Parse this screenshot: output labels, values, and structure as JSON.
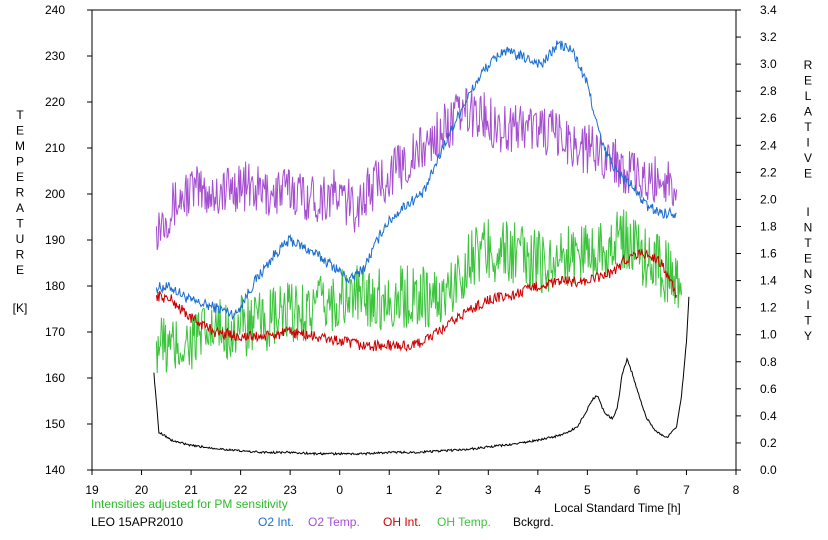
{
  "chart_data": {
    "type": "line",
    "left_axis": {
      "label_letters": [
        "T",
        "E",
        "M",
        "P",
        "E",
        "R",
        "A",
        "T",
        "U",
        "R",
        "E"
      ],
      "unit": "[K]",
      "ylim": [
        140,
        240
      ],
      "ticks": [
        "140",
        "150",
        "160",
        "170",
        "180",
        "190",
        "200",
        "210",
        "220",
        "230",
        "240"
      ]
    },
    "right_axis": {
      "label_line1": [
        "R",
        "E",
        "L",
        "A",
        "T",
        "I",
        "V",
        "E"
      ],
      "label_line2": [
        "I",
        "N",
        "T",
        "E",
        "N",
        "S",
        "I",
        "T",
        "Y"
      ],
      "ylim": [
        0.0,
        3.4
      ],
      "ticks": [
        "0.0",
        "0.2",
        "0.4",
        "0.6",
        "0.8",
        "1.0",
        "1.2",
        "1.4",
        "1.6",
        "1.8",
        "2.0",
        "2.2",
        "2.4",
        "2.6",
        "2.8",
        "3.0",
        "3.2",
        "3.4"
      ]
    },
    "x_axis": {
      "label": "Local Standard Time [h]",
      "xlim": [
        19,
        32
      ],
      "ticks": [
        "19",
        "20",
        "21",
        "22",
        "23",
        "0",
        "1",
        "2",
        "3",
        "4",
        "5",
        "6",
        "7",
        "8"
      ]
    },
    "note": "Intensities adjusted for PM sensitivity",
    "station": "LEO 15APR2010",
    "legend": [
      {
        "label": "O2 Int.",
        "color": "#1a6ecf"
      },
      {
        "label": "O2 Temp.",
        "color": "#a54fd0"
      },
      {
        "label": "OH Int.",
        "color": "#cc0000"
      },
      {
        "label": "OH Temp.",
        "color": "#3cc43c"
      },
      {
        "label": "Bckgrd.",
        "color": "#000000"
      }
    ],
    "series": [
      {
        "label_index": 0,
        "axis": "right",
        "noise": 0.04,
        "x": [
          20.3,
          20.6,
          21.0,
          21.5,
          21.9,
          22.3,
          22.7,
          23.0,
          23.5,
          23.9,
          24.2,
          24.5,
          24.9,
          25.3,
          25.7,
          26.1,
          26.5,
          26.9,
          27.3,
          27.7,
          28.1,
          28.4,
          28.7,
          29.0,
          29.3,
          29.6,
          29.9,
          30.2,
          30.5,
          30.8
        ],
        "y": [
          1.35,
          1.35,
          1.25,
          1.2,
          1.15,
          1.4,
          1.6,
          1.7,
          1.6,
          1.5,
          1.4,
          1.5,
          1.8,
          1.95,
          2.05,
          2.4,
          2.7,
          2.95,
          3.1,
          3.05,
          3.0,
          3.15,
          3.1,
          2.85,
          2.4,
          2.2,
          2.1,
          1.95,
          1.9,
          1.9
        ]
      },
      {
        "label_index": 1,
        "axis": "left",
        "noise": 5.5,
        "x": [
          20.3,
          20.6,
          21.0,
          21.5,
          22.0,
          22.5,
          23.0,
          23.5,
          23.9,
          24.3,
          24.7,
          25.1,
          25.5,
          26.0,
          26.5,
          26.9,
          27.3,
          27.7,
          28.1,
          28.5,
          28.9,
          29.3,
          29.6,
          29.9,
          30.2,
          30.5,
          30.8
        ],
        "y": [
          193,
          197,
          201,
          200,
          202,
          200,
          201,
          199,
          200,
          197,
          202,
          205,
          208,
          213,
          218,
          217,
          214,
          215,
          214,
          212,
          210,
          209,
          207,
          204,
          202,
          204,
          201
        ]
      },
      {
        "label_index": 2,
        "axis": "left",
        "noise": 1.2,
        "x": [
          20.3,
          20.6,
          21.0,
          21.5,
          22.0,
          22.5,
          23.0,
          23.5,
          24.0,
          24.5,
          25.0,
          25.5,
          26.0,
          26.5,
          27.0,
          27.5,
          28.0,
          28.5,
          29.0,
          29.5,
          29.8,
          30.0,
          30.2,
          30.5,
          30.8
        ],
        "y": [
          178,
          177,
          173,
          170,
          169,
          169,
          170,
          169,
          168,
          167,
          167,
          167,
          170,
          174,
          177,
          178,
          180,
          181,
          181,
          183,
          186,
          187,
          187,
          185,
          178
        ]
      },
      {
        "label_index": 3,
        "axis": "left",
        "noise": 7.0,
        "x": [
          20.3,
          20.6,
          21.0,
          21.5,
          22.0,
          22.5,
          23.0,
          23.5,
          24.0,
          24.5,
          25.0,
          25.5,
          26.0,
          26.3,
          26.6,
          27.0,
          27.5,
          28.0,
          28.5,
          29.0,
          29.5,
          29.8,
          30.1,
          30.4,
          30.7,
          30.9
        ],
        "y": [
          168,
          166,
          168,
          170,
          171,
          172,
          174,
          175,
          177,
          178,
          177,
          178,
          177,
          180,
          186,
          188,
          187,
          185,
          186,
          188,
          189,
          190,
          187,
          185,
          182,
          178
        ]
      },
      {
        "label_index": 4,
        "axis": "right",
        "noise": 0.008,
        "x": [
          20.25,
          20.3,
          20.35,
          20.45,
          20.6,
          21.0,
          21.5,
          22.0,
          22.5,
          23.0,
          23.5,
          24.0,
          24.5,
          25.0,
          25.5,
          26.0,
          26.5,
          27.0,
          27.5,
          28.0,
          28.5,
          28.8,
          29.0,
          29.1,
          29.2,
          29.35,
          29.5,
          29.6,
          29.7,
          29.8,
          29.9,
          30.0,
          30.1,
          30.2,
          30.4,
          30.6,
          30.8,
          30.9,
          31.0,
          31.05
        ],
        "y": [
          0.72,
          0.5,
          0.28,
          0.26,
          0.22,
          0.18,
          0.16,
          0.14,
          0.13,
          0.13,
          0.12,
          0.12,
          0.12,
          0.13,
          0.13,
          0.14,
          0.15,
          0.17,
          0.19,
          0.22,
          0.26,
          0.32,
          0.45,
          0.52,
          0.55,
          0.42,
          0.38,
          0.45,
          0.7,
          0.82,
          0.72,
          0.6,
          0.48,
          0.38,
          0.28,
          0.24,
          0.32,
          0.55,
          0.95,
          1.28
        ]
      }
    ]
  }
}
